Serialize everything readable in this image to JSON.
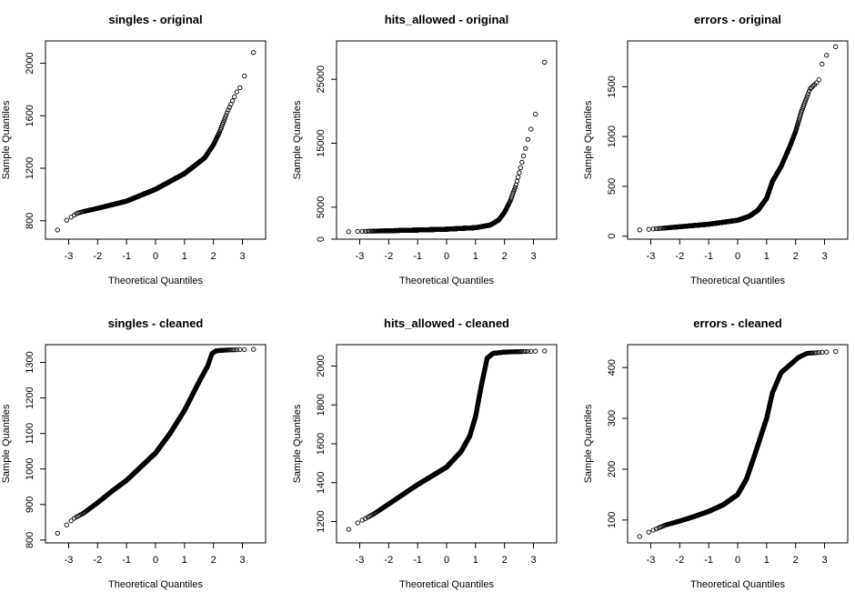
{
  "chart_data": [
    {
      "type": "scatter",
      "title": "singles - original",
      "xlabel": "Theoretical Quantiles",
      "ylabel": "Sample Quantiles",
      "xlim": [
        -3.8,
        3.8
      ],
      "ylim": [
        660,
        2170
      ],
      "x_ticks": [
        "-3",
        "-2",
        "-1",
        "0",
        "1",
        "2",
        "3"
      ],
      "y_ticks": [
        "800",
        "1200",
        "1600",
        "2000"
      ],
      "quantile_anchors": [
        [
          -3.55,
          700
        ],
        [
          -3.3,
          745
        ],
        [
          -3.1,
          800
        ],
        [
          -2.9,
          830
        ],
        [
          -2.7,
          858
        ],
        [
          -2.5,
          870
        ],
        [
          -2.0,
          895
        ],
        [
          -1.0,
          950
        ],
        [
          0.0,
          1040
        ],
        [
          1.0,
          1160
        ],
        [
          1.7,
          1280
        ],
        [
          2.0,
          1380
        ],
        [
          2.2,
          1470
        ],
        [
          2.5,
          1640
        ],
        [
          2.8,
          1780
        ],
        [
          3.0,
          1840
        ],
        [
          3.2,
          2020
        ],
        [
          3.5,
          2120
        ]
      ]
    },
    {
      "type": "scatter",
      "title": "hits_allowed - original",
      "xlabel": "Theoretical Quantiles",
      "ylabel": "Sample Quantiles",
      "xlim": [
        -3.8,
        3.8
      ],
      "ylim": [
        0,
        31000
      ],
      "x_ticks": [
        "-3",
        "-2",
        "-1",
        "0",
        "1",
        "2",
        "3"
      ],
      "y_ticks": [
        "0",
        "5000",
        "15000",
        "25000"
      ],
      "quantile_anchors": [
        [
          -3.55,
          1150
        ],
        [
          -3.0,
          1220
        ],
        [
          -2.0,
          1320
        ],
        [
          -1.0,
          1430
        ],
        [
          0.0,
          1560
        ],
        [
          1.0,
          1800
        ],
        [
          1.5,
          2200
        ],
        [
          1.8,
          3000
        ],
        [
          2.0,
          4200
        ],
        [
          2.2,
          6000
        ],
        [
          2.4,
          8500
        ],
        [
          2.6,
          12000
        ],
        [
          2.8,
          15500
        ],
        [
          2.9,
          17000
        ],
        [
          3.1,
          20000
        ],
        [
          3.2,
          24000
        ],
        [
          3.5,
          30000
        ]
      ]
    },
    {
      "type": "scatter",
      "title": "errors - original",
      "xlabel": "Theoretical Quantiles",
      "ylabel": "Sample Quantiles",
      "xlim": [
        -3.8,
        3.8
      ],
      "ylim": [
        -30,
        1960
      ],
      "x_ticks": [
        "-3",
        "-2",
        "-1",
        "0",
        "1",
        "2",
        "3"
      ],
      "y_ticks": [
        "0",
        "500",
        "1000",
        "1500"
      ],
      "quantile_anchors": [
        [
          -3.55,
          60
        ],
        [
          -3.0,
          70
        ],
        [
          -2.0,
          95
        ],
        [
          -1.0,
          120
        ],
        [
          0.0,
          160
        ],
        [
          0.4,
          200
        ],
        [
          0.7,
          260
        ],
        [
          1.0,
          380
        ],
        [
          1.2,
          550
        ],
        [
          1.5,
          700
        ],
        [
          1.8,
          900
        ],
        [
          2.0,
          1050
        ],
        [
          2.2,
          1250
        ],
        [
          2.5,
          1480
        ],
        [
          2.8,
          1560
        ],
        [
          2.9,
          1720
        ],
        [
          3.2,
          1890
        ],
        [
          3.5,
          1910
        ]
      ]
    },
    {
      "type": "scatter",
      "title": "singles - cleaned",
      "xlabel": "Theoretical Quantiles",
      "ylabel": "Sample Quantiles",
      "xlim": [
        -3.8,
        3.8
      ],
      "ylim": [
        792,
        1350
      ],
      "x_ticks": [
        "-3",
        "-2",
        "-1",
        "0",
        "1",
        "2",
        "3"
      ],
      "y_ticks": [
        "800",
        "900",
        "1000",
        "1100",
        "1200",
        "1300"
      ],
      "quantile_anchors": [
        [
          -3.55,
          808
        ],
        [
          -3.3,
          825
        ],
        [
          -3.0,
          848
        ],
        [
          -2.8,
          862
        ],
        [
          -2.5,
          875
        ],
        [
          -2.0,
          905
        ],
        [
          -1.5,
          938
        ],
        [
          -1.0,
          968
        ],
        [
          0.0,
          1045
        ],
        [
          0.5,
          1100
        ],
        [
          1.0,
          1165
        ],
        [
          1.5,
          1245
        ],
        [
          1.8,
          1290
        ],
        [
          1.95,
          1325
        ],
        [
          2.1,
          1333
        ],
        [
          2.5,
          1335
        ],
        [
          3.5,
          1337
        ]
      ]
    },
    {
      "type": "scatter",
      "title": "hits_allowed - cleaned",
      "xlabel": "Theoretical Quantiles",
      "ylabel": "Sample Quantiles",
      "xlim": [
        -3.8,
        3.8
      ],
      "ylim": [
        1090,
        2110
      ],
      "x_ticks": [
        "-3",
        "-2",
        "-1",
        "0",
        "1",
        "2",
        "3"
      ],
      "y_ticks": [
        "1200",
        "1400",
        "1600",
        "1800",
        "2000"
      ],
      "quantile_anchors": [
        [
          -3.55,
          1140
        ],
        [
          -3.3,
          1170
        ],
        [
          -3.0,
          1200
        ],
        [
          -2.5,
          1240
        ],
        [
          -2.0,
          1290
        ],
        [
          -1.5,
          1340
        ],
        [
          -1.0,
          1390
        ],
        [
          0.0,
          1480
        ],
        [
          0.5,
          1560
        ],
        [
          0.8,
          1640
        ],
        [
          1.0,
          1740
        ],
        [
          1.2,
          1900
        ],
        [
          1.4,
          2040
        ],
        [
          1.6,
          2065
        ],
        [
          2.0,
          2072
        ],
        [
          3.5,
          2078
        ]
      ]
    },
    {
      "type": "scatter",
      "title": "errors - cleaned",
      "xlabel": "Theoretical Quantiles",
      "ylabel": "Sample Quantiles",
      "xlim": [
        -3.8,
        3.8
      ],
      "ylim": [
        55,
        445
      ],
      "x_ticks": [
        "-3",
        "-2",
        "-1",
        "0",
        "1",
        "2",
        "3"
      ],
      "y_ticks": [
        "100",
        "200",
        "300",
        "400"
      ],
      "quantile_anchors": [
        [
          -3.55,
          63
        ],
        [
          -3.3,
          70
        ],
        [
          -3.0,
          78
        ],
        [
          -2.5,
          90
        ],
        [
          -2.0,
          98
        ],
        [
          -1.5,
          107
        ],
        [
          -1.0,
          117
        ],
        [
          -0.5,
          130
        ],
        [
          0.0,
          150
        ],
        [
          0.3,
          180
        ],
        [
          0.6,
          230
        ],
        [
          1.0,
          300
        ],
        [
          1.2,
          350
        ],
        [
          1.5,
          390
        ],
        [
          1.8,
          405
        ],
        [
          2.1,
          420
        ],
        [
          2.4,
          428
        ],
        [
          3.5,
          432
        ]
      ]
    }
  ]
}
